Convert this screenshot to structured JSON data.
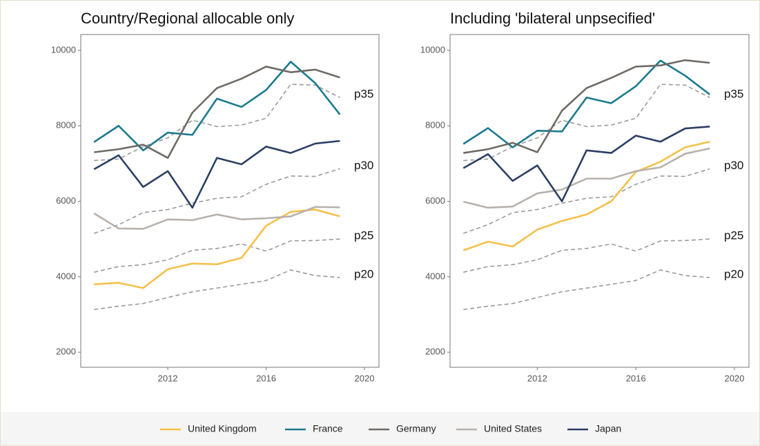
{
  "chart_data": [
    {
      "type": "line",
      "title": "Country/Regional allocable only",
      "x": [
        2009,
        2010,
        2011,
        2012,
        2013,
        2014,
        2015,
        2016,
        2017,
        2018,
        2019
      ],
      "xlim": [
        2008.46,
        2020.59
      ],
      "xticks": [
        2012,
        2016,
        2020
      ],
      "ylim": [
        1600,
        10420
      ],
      "yticks": [
        2000,
        4000,
        6000,
        8000,
        10000
      ],
      "series": [
        {
          "name": "United Kingdom",
          "color": "#f5c04a",
          "values": [
            3800,
            3840,
            3700,
            4200,
            4350,
            4330,
            4500,
            5350,
            5720,
            5780,
            5600
          ]
        },
        {
          "name": "France",
          "color": "#1a7a8c",
          "values": [
            7570,
            8000,
            7350,
            7820,
            7760,
            8720,
            8500,
            8950,
            9700,
            9130,
            8300
          ]
        },
        {
          "name": "Germany",
          "color": "#6e6a66",
          "values": [
            7300,
            7380,
            7500,
            7150,
            8350,
            9000,
            9250,
            9570,
            9420,
            9490,
            9280
          ]
        },
        {
          "name": "United States",
          "color": "#b7b1ac",
          "values": [
            5680,
            5280,
            5270,
            5520,
            5500,
            5650,
            5520,
            5550,
            5600,
            5850,
            5840
          ]
        },
        {
          "name": "Japan",
          "color": "#2b3f62",
          "values": [
            6850,
            7220,
            6380,
            6800,
            5830,
            7150,
            6980,
            7450,
            7280,
            7530,
            7600
          ]
        },
        {
          "name": "p35",
          "color": "#9a9a9a",
          "dashed": true,
          "values": [
            7080,
            7120,
            7450,
            7680,
            8150,
            7980,
            8020,
            8200,
            9100,
            9080,
            8750
          ]
        },
        {
          "name": "p30",
          "color": "#9a9a9a",
          "dashed": true,
          "values": [
            5150,
            5380,
            5700,
            5780,
            5950,
            6080,
            6120,
            6450,
            6670,
            6660,
            6860
          ]
        },
        {
          "name": "p25",
          "color": "#9a9a9a",
          "dashed": true,
          "values": [
            4120,
            4270,
            4320,
            4450,
            4700,
            4750,
            4870,
            4680,
            4950,
            4960,
            5000
          ]
        },
        {
          "name": "p20",
          "color": "#9a9a9a",
          "dashed": true,
          "values": [
            3130,
            3220,
            3290,
            3450,
            3600,
            3700,
            3800,
            3900,
            4180,
            4030,
            3980
          ]
        }
      ]
    },
    {
      "type": "line",
      "title": "Including 'bilateral unpsecified'",
      "x": [
        2009,
        2010,
        2011,
        2012,
        2013,
        2014,
        2015,
        2016,
        2017,
        2018,
        2019
      ],
      "xlim": [
        2008.46,
        2020.59
      ],
      "xticks": [
        2012,
        2016,
        2020
      ],
      "ylim": [
        1600,
        10420
      ],
      "yticks": [
        2000,
        4000,
        6000,
        8000,
        10000
      ],
      "series": [
        {
          "name": "United Kingdom",
          "color": "#f5c04a",
          "values": [
            4700,
            4930,
            4800,
            5250,
            5480,
            5650,
            6000,
            6780,
            7050,
            7430,
            7580
          ]
        },
        {
          "name": "France",
          "color": "#1a7a8c",
          "values": [
            7520,
            7940,
            7430,
            7870,
            7850,
            8750,
            8600,
            9050,
            9730,
            9330,
            8830
          ]
        },
        {
          "name": "Germany",
          "color": "#6e6a66",
          "values": [
            7280,
            7380,
            7550,
            7300,
            8400,
            9000,
            9270,
            9570,
            9600,
            9740,
            9670
          ]
        },
        {
          "name": "United States",
          "color": "#b7b1ac",
          "values": [
            5990,
            5830,
            5860,
            6210,
            6310,
            6600,
            6600,
            6800,
            6900,
            7260,
            7400
          ]
        },
        {
          "name": "Japan",
          "color": "#2b3f62",
          "values": [
            6880,
            7250,
            6540,
            6950,
            6000,
            7350,
            7280,
            7740,
            7580,
            7930,
            7980
          ]
        },
        {
          "name": "p35",
          "color": "#9a9a9a",
          "dashed": true,
          "values": [
            7080,
            7120,
            7450,
            7680,
            8150,
            7980,
            8020,
            8200,
            9100,
            9080,
            8750
          ]
        },
        {
          "name": "p30",
          "color": "#9a9a9a",
          "dashed": true,
          "values": [
            5150,
            5380,
            5700,
            5780,
            5950,
            6080,
            6120,
            6450,
            6670,
            6660,
            6860
          ]
        },
        {
          "name": "p25",
          "color": "#9a9a9a",
          "dashed": true,
          "values": [
            4120,
            4270,
            4320,
            4450,
            4700,
            4750,
            4870,
            4680,
            4950,
            4960,
            5000
          ]
        },
        {
          "name": "p20",
          "color": "#9a9a9a",
          "dashed": true,
          "values": [
            3130,
            3220,
            3290,
            3450,
            3600,
            3700,
            3800,
            3900,
            4180,
            4030,
            3980
          ]
        }
      ]
    }
  ]
}
